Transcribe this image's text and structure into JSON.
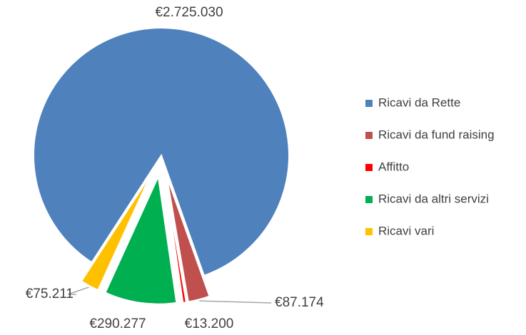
{
  "chart_data": {
    "type": "pie",
    "categories": [
      "Ricavi da Rette",
      "Ricavi da fund raising",
      "Affitto",
      "Ricavi da altri servizi",
      "Ricavi vari"
    ],
    "values": [
      2725030,
      87174,
      13200,
      290277,
      75211
    ],
    "value_labels": [
      "€2.725.030",
      "€87.174",
      "€13.200",
      "€290.277",
      "€75.211"
    ],
    "colors": [
      "#4f81bd",
      "#c0504d",
      "#ff0000",
      "#00b050",
      "#ffc000"
    ],
    "legend": "right"
  }
}
